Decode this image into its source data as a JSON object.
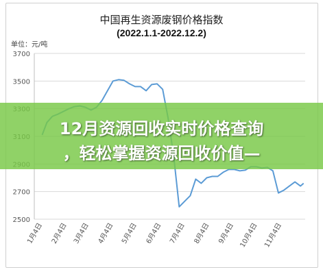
{
  "chart_data": {
    "type": "line",
    "title": "中国再生资源废钢价格指数",
    "subtitle": "(2022.1.1-2022.12.2)",
    "unit_label": "单位：元/吨",
    "ylim": [
      2500,
      3700
    ],
    "yticks": [
      2500,
      2700,
      2900,
      3100,
      3300,
      3500,
      3700
    ],
    "xtick_labels": [
      "1月4日",
      "2月4日",
      "3月4日",
      "4月4日",
      "5月4日",
      "6月4日",
      "7月4日",
      "8月4日",
      "9月4日",
      "10月4日",
      "11月4日"
    ],
    "grid": "horizontal",
    "series": [
      {
        "color": "#5b9bd5",
        "x": [
          "2022-01-04",
          "2022-01-10",
          "2022-01-17",
          "2022-01-24",
          "2022-01-31",
          "2022-02-07",
          "2022-02-14",
          "2022-02-21",
          "2022-02-28",
          "2022-03-07",
          "2022-03-14",
          "2022-03-21",
          "2022-03-28",
          "2022-04-04",
          "2022-04-11",
          "2022-04-18",
          "2022-04-25",
          "2022-05-02",
          "2022-05-09",
          "2022-05-16",
          "2022-05-23",
          "2022-05-30",
          "2022-06-06",
          "2022-06-13",
          "2022-06-20",
          "2022-06-27",
          "2022-07-04",
          "2022-07-11",
          "2022-07-18",
          "2022-07-25",
          "2022-08-01",
          "2022-08-08",
          "2022-08-15",
          "2022-08-22",
          "2022-08-29",
          "2022-09-05",
          "2022-09-12",
          "2022-09-19",
          "2022-09-26",
          "2022-10-03",
          "2022-10-10",
          "2022-10-17",
          "2022-10-24",
          "2022-10-31",
          "2022-11-07",
          "2022-11-14",
          "2022-11-21",
          "2022-11-28",
          "2022-12-02"
        ],
        "values": [
          3110,
          3200,
          3245,
          3260,
          3280,
          3300,
          3315,
          3320,
          3310,
          3290,
          3310,
          3360,
          3430,
          3500,
          3510,
          3505,
          3480,
          3460,
          3460,
          3430,
          3475,
          3480,
          3440,
          3230,
          2960,
          2590,
          2630,
          2670,
          2790,
          2760,
          2800,
          2810,
          2810,
          2840,
          2860,
          2860,
          2850,
          2855,
          2880,
          2880,
          2870,
          2875,
          2850,
          2690,
          2710,
          2740,
          2770,
          2740,
          2760
        ]
      }
    ]
  },
  "banner": {
    "line1": "12月资源回收实时价格查询",
    "line2": "，轻松掌握资源回收价值—"
  }
}
